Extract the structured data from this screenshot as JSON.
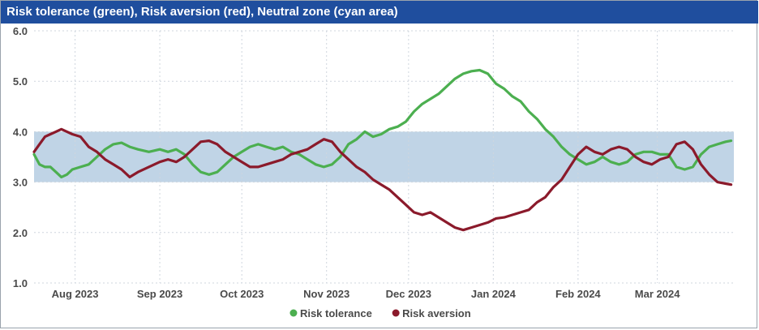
{
  "chart_data": {
    "type": "line",
    "title": "Risk tolerance (green), Risk aversion (red), Neutral zone (cyan area)",
    "xlabel": "",
    "ylabel": "",
    "ylim": [
      1.0,
      6.0
    ],
    "yticks": [
      "1.0",
      "2.0",
      "3.0",
      "4.0",
      "5.0",
      "6.0"
    ],
    "xlim": [
      "2023-07-17",
      "2024-03-29"
    ],
    "xticks": [
      {
        "date": "2023-08-01",
        "label": "Aug 2023"
      },
      {
        "date": "2023-09-01",
        "label": "Sep 2023"
      },
      {
        "date": "2023-10-01",
        "label": "Oct 2023"
      },
      {
        "date": "2023-11-01",
        "label": "Nov 2023"
      },
      {
        "date": "2023-12-01",
        "label": "Dec 2023"
      },
      {
        "date": "2024-01-01",
        "label": "Jan 2024"
      },
      {
        "date": "2024-02-01",
        "label": "Feb 2024"
      },
      {
        "date": "2024-03-01",
        "label": "Mar 2024"
      }
    ],
    "neutral_zone": [
      3.0,
      4.0
    ],
    "grid": true,
    "legend_position": "bottom",
    "series": [
      {
        "name": "Risk tolerance",
        "color": "#4caf50",
        "points": [
          [
            "2023-07-17",
            3.55
          ],
          [
            "2023-07-19",
            3.35
          ],
          [
            "2023-07-21",
            3.3
          ],
          [
            "2023-07-23",
            3.3
          ],
          [
            "2023-07-25",
            3.2
          ],
          [
            "2023-07-27",
            3.1
          ],
          [
            "2023-07-29",
            3.15
          ],
          [
            "2023-07-31",
            3.25
          ],
          [
            "2023-08-03",
            3.3
          ],
          [
            "2023-08-06",
            3.35
          ],
          [
            "2023-08-09",
            3.5
          ],
          [
            "2023-08-12",
            3.65
          ],
          [
            "2023-08-15",
            3.75
          ],
          [
            "2023-08-18",
            3.78
          ],
          [
            "2023-08-21",
            3.7
          ],
          [
            "2023-08-24",
            3.65
          ],
          [
            "2023-08-28",
            3.6
          ],
          [
            "2023-09-01",
            3.65
          ],
          [
            "2023-09-04",
            3.6
          ],
          [
            "2023-09-07",
            3.65
          ],
          [
            "2023-09-10",
            3.55
          ],
          [
            "2023-09-13",
            3.35
          ],
          [
            "2023-09-16",
            3.2
          ],
          [
            "2023-09-19",
            3.15
          ],
          [
            "2023-09-22",
            3.2
          ],
          [
            "2023-09-25",
            3.35
          ],
          [
            "2023-09-28",
            3.5
          ],
          [
            "2023-10-01",
            3.6
          ],
          [
            "2023-10-04",
            3.7
          ],
          [
            "2023-10-07",
            3.75
          ],
          [
            "2023-10-10",
            3.7
          ],
          [
            "2023-10-13",
            3.65
          ],
          [
            "2023-10-16",
            3.7
          ],
          [
            "2023-10-19",
            3.6
          ],
          [
            "2023-10-22",
            3.55
          ],
          [
            "2023-10-25",
            3.45
          ],
          [
            "2023-10-28",
            3.35
          ],
          [
            "2023-10-31",
            3.3
          ],
          [
            "2023-11-03",
            3.35
          ],
          [
            "2023-11-06",
            3.5
          ],
          [
            "2023-11-09",
            3.75
          ],
          [
            "2023-11-12",
            3.85
          ],
          [
            "2023-11-15",
            4.0
          ],
          [
            "2023-11-18",
            3.9
          ],
          [
            "2023-11-21",
            3.95
          ],
          [
            "2023-11-24",
            4.05
          ],
          [
            "2023-11-27",
            4.1
          ],
          [
            "2023-11-30",
            4.2
          ],
          [
            "2023-12-03",
            4.4
          ],
          [
            "2023-12-06",
            4.55
          ],
          [
            "2023-12-09",
            4.65
          ],
          [
            "2023-12-12",
            4.75
          ],
          [
            "2023-12-15",
            4.9
          ],
          [
            "2023-12-18",
            5.05
          ],
          [
            "2023-12-21",
            5.15
          ],
          [
            "2023-12-24",
            5.2
          ],
          [
            "2023-12-27",
            5.22
          ],
          [
            "2023-12-30",
            5.15
          ],
          [
            "2024-01-02",
            4.95
          ],
          [
            "2024-01-05",
            4.85
          ],
          [
            "2024-01-08",
            4.7
          ],
          [
            "2024-01-11",
            4.6
          ],
          [
            "2024-01-14",
            4.4
          ],
          [
            "2024-01-17",
            4.25
          ],
          [
            "2024-01-20",
            4.05
          ],
          [
            "2024-01-23",
            3.9
          ],
          [
            "2024-01-26",
            3.7
          ],
          [
            "2024-01-29",
            3.55
          ],
          [
            "2024-02-01",
            3.45
          ],
          [
            "2024-02-04",
            3.35
          ],
          [
            "2024-02-07",
            3.4
          ],
          [
            "2024-02-10",
            3.5
          ],
          [
            "2024-02-13",
            3.4
          ],
          [
            "2024-02-16",
            3.35
          ],
          [
            "2024-02-19",
            3.4
          ],
          [
            "2024-02-22",
            3.55
          ],
          [
            "2024-02-25",
            3.6
          ],
          [
            "2024-02-28",
            3.6
          ],
          [
            "2024-03-02",
            3.55
          ],
          [
            "2024-03-05",
            3.55
          ],
          [
            "2024-03-08",
            3.3
          ],
          [
            "2024-03-11",
            3.25
          ],
          [
            "2024-03-14",
            3.3
          ],
          [
            "2024-03-17",
            3.55
          ],
          [
            "2024-03-20",
            3.7
          ],
          [
            "2024-03-23",
            3.75
          ],
          [
            "2024-03-26",
            3.8
          ],
          [
            "2024-03-28",
            3.82
          ]
        ]
      },
      {
        "name": "Risk aversion",
        "color": "#8b1a2b",
        "points": [
          [
            "2023-07-17",
            3.6
          ],
          [
            "2023-07-19",
            3.75
          ],
          [
            "2023-07-21",
            3.9
          ],
          [
            "2023-07-23",
            3.95
          ],
          [
            "2023-07-25",
            4.0
          ],
          [
            "2023-07-27",
            4.05
          ],
          [
            "2023-07-29",
            4.0
          ],
          [
            "2023-07-31",
            3.95
          ],
          [
            "2023-08-03",
            3.9
          ],
          [
            "2023-08-06",
            3.7
          ],
          [
            "2023-08-09",
            3.6
          ],
          [
            "2023-08-12",
            3.45
          ],
          [
            "2023-08-15",
            3.35
          ],
          [
            "2023-08-18",
            3.25
          ],
          [
            "2023-08-21",
            3.1
          ],
          [
            "2023-08-24",
            3.2
          ],
          [
            "2023-08-28",
            3.3
          ],
          [
            "2023-09-01",
            3.4
          ],
          [
            "2023-09-04",
            3.45
          ],
          [
            "2023-09-07",
            3.4
          ],
          [
            "2023-09-10",
            3.5
          ],
          [
            "2023-09-13",
            3.65
          ],
          [
            "2023-09-16",
            3.8
          ],
          [
            "2023-09-19",
            3.82
          ],
          [
            "2023-09-22",
            3.75
          ],
          [
            "2023-09-25",
            3.6
          ],
          [
            "2023-09-28",
            3.5
          ],
          [
            "2023-10-01",
            3.4
          ],
          [
            "2023-10-04",
            3.3
          ],
          [
            "2023-10-07",
            3.3
          ],
          [
            "2023-10-10",
            3.35
          ],
          [
            "2023-10-13",
            3.4
          ],
          [
            "2023-10-16",
            3.45
          ],
          [
            "2023-10-19",
            3.55
          ],
          [
            "2023-10-22",
            3.6
          ],
          [
            "2023-10-25",
            3.65
          ],
          [
            "2023-10-28",
            3.75
          ],
          [
            "2023-10-31",
            3.85
          ],
          [
            "2023-11-03",
            3.8
          ],
          [
            "2023-11-06",
            3.6
          ],
          [
            "2023-11-09",
            3.45
          ],
          [
            "2023-11-12",
            3.3
          ],
          [
            "2023-11-15",
            3.2
          ],
          [
            "2023-11-18",
            3.05
          ],
          [
            "2023-11-21",
            2.95
          ],
          [
            "2023-11-24",
            2.85
          ],
          [
            "2023-11-27",
            2.7
          ],
          [
            "2023-11-30",
            2.55
          ],
          [
            "2023-12-03",
            2.4
          ],
          [
            "2023-12-06",
            2.35
          ],
          [
            "2023-12-09",
            2.4
          ],
          [
            "2023-12-12",
            2.3
          ],
          [
            "2023-12-15",
            2.2
          ],
          [
            "2023-12-18",
            2.1
          ],
          [
            "2023-12-21",
            2.05
          ],
          [
            "2023-12-24",
            2.1
          ],
          [
            "2023-12-27",
            2.15
          ],
          [
            "2023-12-30",
            2.2
          ],
          [
            "2024-01-02",
            2.28
          ],
          [
            "2024-01-05",
            2.3
          ],
          [
            "2024-01-08",
            2.35
          ],
          [
            "2024-01-11",
            2.4
          ],
          [
            "2024-01-14",
            2.45
          ],
          [
            "2024-01-17",
            2.6
          ],
          [
            "2024-01-20",
            2.7
          ],
          [
            "2024-01-23",
            2.9
          ],
          [
            "2024-01-26",
            3.05
          ],
          [
            "2024-01-29",
            3.3
          ],
          [
            "2024-02-01",
            3.55
          ],
          [
            "2024-02-04",
            3.7
          ],
          [
            "2024-02-07",
            3.6
          ],
          [
            "2024-02-10",
            3.55
          ],
          [
            "2024-02-13",
            3.65
          ],
          [
            "2024-02-16",
            3.7
          ],
          [
            "2024-02-19",
            3.65
          ],
          [
            "2024-02-22",
            3.5
          ],
          [
            "2024-02-25",
            3.4
          ],
          [
            "2024-02-28",
            3.35
          ],
          [
            "2024-03-02",
            3.45
          ],
          [
            "2024-03-05",
            3.5
          ],
          [
            "2024-03-08",
            3.75
          ],
          [
            "2024-03-11",
            3.8
          ],
          [
            "2024-03-14",
            3.65
          ],
          [
            "2024-03-17",
            3.35
          ],
          [
            "2024-03-20",
            3.15
          ],
          [
            "2024-03-23",
            3.0
          ],
          [
            "2024-03-26",
            2.97
          ],
          [
            "2024-03-28",
            2.95
          ]
        ]
      }
    ]
  }
}
